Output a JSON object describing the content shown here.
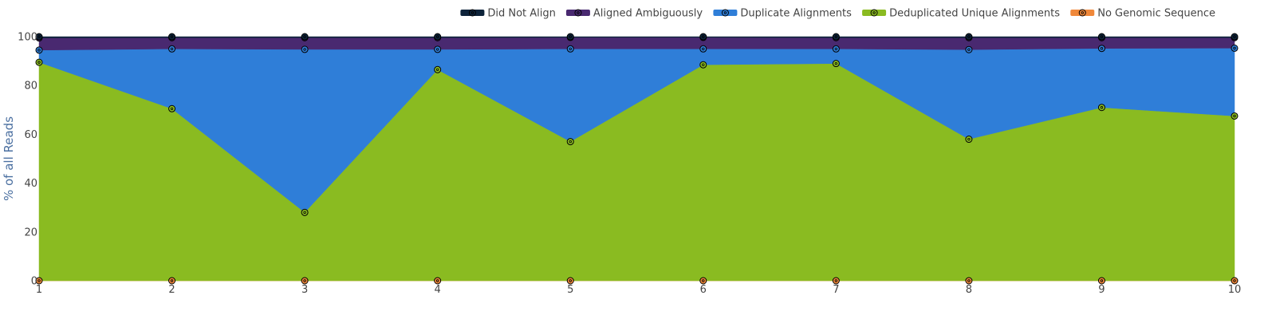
{
  "chart_data": {
    "type": "area",
    "stacked": true,
    "x": [
      1,
      2,
      3,
      4,
      5,
      6,
      7,
      8,
      9,
      10
    ],
    "xlim": [
      1,
      10
    ],
    "ylim": [
      0,
      100
    ],
    "ylabel": "% of all Reads",
    "x_ticks": [
      "1",
      "2",
      "3",
      "4",
      "5",
      "6",
      "7",
      "8",
      "9",
      "10"
    ],
    "y_ticks": [
      "0",
      "20",
      "40",
      "60",
      "80",
      "100"
    ],
    "legend_position": "top-right",
    "series": [
      {
        "name": "No Genomic Sequence",
        "color": "#f0883a",
        "values": [
          0,
          0,
          0,
          0,
          0,
          0,
          0,
          0,
          0,
          0
        ]
      },
      {
        "name": "Deduplicated Unique Alignments",
        "color": "#8abb21",
        "values": [
          89.5,
          70.5,
          28,
          86.5,
          57,
          88.5,
          89,
          58,
          71,
          67.5
        ]
      },
      {
        "name": "Duplicate Alignments",
        "color": "#2f7ed8",
        "values": [
          5,
          24.5,
          66.8,
          8.3,
          38,
          6.5,
          6,
          36.7,
          24.2,
          27.8
        ]
      },
      {
        "name": "Aligned Ambiguously",
        "color": "#492970",
        "values": [
          5,
          4.6,
          4.8,
          4.8,
          4.7,
          4.7,
          4.6,
          4.9,
          4.4,
          4.3
        ]
      },
      {
        "name": "Did Not Align",
        "color": "#0d233a",
        "values": [
          0.5,
          0.4,
          0.4,
          0.4,
          0.3,
          0.3,
          0.4,
          0.4,
          0.4,
          0.4
        ]
      }
    ],
    "legend_order": [
      "Did Not Align",
      "Aligned Ambiguously",
      "Duplicate Alignments",
      "Deduplicated Unique Alignments",
      "No Genomic Sequence"
    ]
  }
}
